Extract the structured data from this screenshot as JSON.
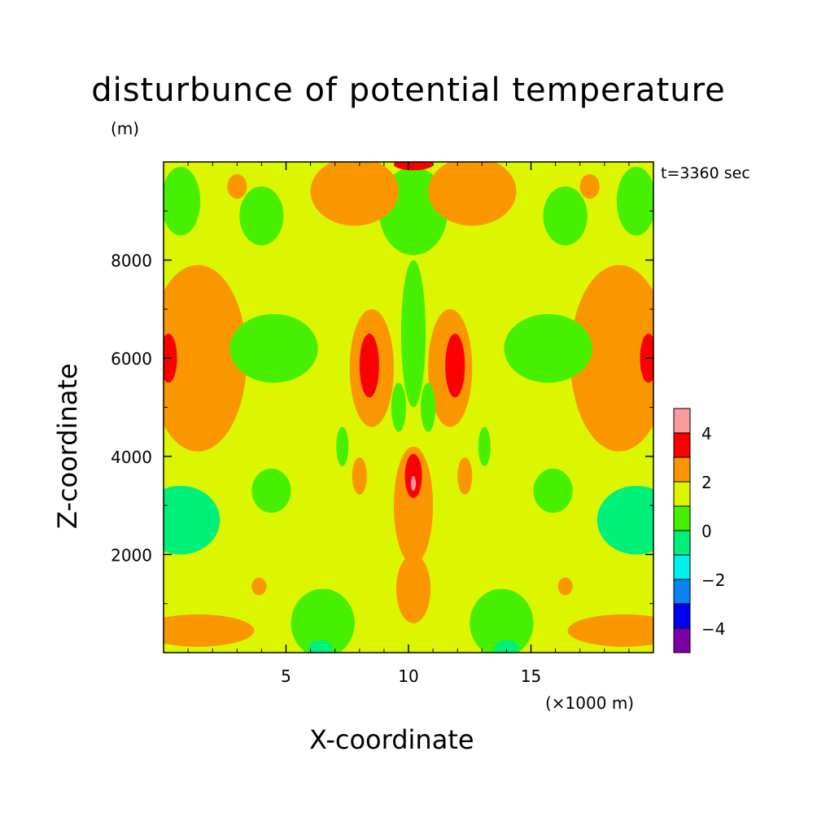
{
  "title": "disturbunce of potential temperature",
  "units_label": "(m)",
  "time_label": "t=3360 sec",
  "chart_data": {
    "type": "heatmap",
    "title": "disturbunce of potential temperature",
    "xlabel": "X-coordinate",
    "ylabel": "Z-coordinate",
    "x_unit_label": "(×1000 m)",
    "xlim": [
      0,
      20
    ],
    "ylim": [
      0,
      10000
    ],
    "x_ticks": [
      5,
      10,
      15
    ],
    "x_tick_labels": [
      "5",
      "10",
      "15"
    ],
    "y_ticks": [
      2000,
      4000,
      6000,
      8000
    ],
    "y_tick_labels": [
      "2000",
      "4000",
      "6000",
      "8000"
    ],
    "colorbar": {
      "levels": [
        -5,
        -4,
        -3,
        -2,
        -1,
        0,
        1,
        2,
        3,
        4,
        5
      ],
      "tick_values": [
        -4,
        -2,
        0,
        2,
        4
      ],
      "tick_labels": [
        "−4",
        "−2",
        "0",
        "2",
        "4"
      ],
      "colors": [
        "#7a00a8",
        "#0000f0",
        "#0a82f0",
        "#00f0f0",
        "#00f07a",
        "#46f000",
        "#dcf500",
        "#fa9600",
        "#fa0000",
        "#fa9c9c"
      ]
    },
    "background_level": "1 to 2",
    "regions": [
      {
        "level": "-1 to 0",
        "shape": "ellipse",
        "cx": 0.7,
        "cy": 2700,
        "rx": 1.6,
        "ry": 700
      },
      {
        "level": "-1 to 0",
        "shape": "ellipse",
        "cx": 19.3,
        "cy": 2700,
        "rx": 1.6,
        "ry": 700
      },
      {
        "level": "2 to 3",
        "shape": "ellipse",
        "cx": 1.4,
        "cy": 6000,
        "rx": 2.0,
        "ry": 1900
      },
      {
        "level": "2 to 3",
        "shape": "ellipse",
        "cx": 18.6,
        "cy": 6000,
        "rx": 2.0,
        "ry": 1900
      },
      {
        "level": "3 to 4",
        "shape": "ellipse",
        "cx": 0.2,
        "cy": 6000,
        "rx": 0.35,
        "ry": 500
      },
      {
        "level": "3 to 4",
        "shape": "ellipse",
        "cx": 19.8,
        "cy": 6000,
        "rx": 0.35,
        "ry": 500
      },
      {
        "level": "2 to 3",
        "shape": "ellipse",
        "cx": 8.5,
        "cy": 5800,
        "rx": 0.9,
        "ry": 1200
      },
      {
        "level": "2 to 3",
        "shape": "ellipse",
        "cx": 11.7,
        "cy": 5800,
        "rx": 0.9,
        "ry": 1200
      },
      {
        "level": "3 to 4",
        "shape": "ellipse",
        "cx": 8.4,
        "cy": 5850,
        "rx": 0.4,
        "ry": 650
      },
      {
        "level": "3 to 4",
        "shape": "ellipse",
        "cx": 11.9,
        "cy": 5850,
        "rx": 0.4,
        "ry": 650
      },
      {
        "level": "2 to 3",
        "shape": "ellipse",
        "cx": 10.2,
        "cy": 3000,
        "rx": 0.8,
        "ry": 1200
      },
      {
        "level": "3 to 4",
        "shape": "ellipse",
        "cx": 10.2,
        "cy": 3600,
        "rx": 0.35,
        "ry": 450
      },
      {
        "level": "4 to 5",
        "shape": "ellipse",
        "cx": 10.2,
        "cy": 3450,
        "rx": 0.1,
        "ry": 150
      },
      {
        "level": "2 to 3",
        "shape": "ellipse",
        "cx": 10.2,
        "cy": 1300,
        "rx": 0.7,
        "ry": 700
      },
      {
        "level": "0 to 1",
        "shape": "ellipse",
        "cx": 10.2,
        "cy": 9000,
        "rx": 1.4,
        "ry": 900
      },
      {
        "level": "0 to 1",
        "shape": "ellipse",
        "cx": 10.2,
        "cy": 6500,
        "rx": 0.5,
        "ry": 1500
      },
      {
        "level": "0 to 1",
        "shape": "ellipse",
        "cx": 4.5,
        "cy": 6200,
        "rx": 1.8,
        "ry": 700
      },
      {
        "level": "0 to 1",
        "shape": "ellipse",
        "cx": 15.7,
        "cy": 6200,
        "rx": 1.8,
        "ry": 700
      },
      {
        "level": "0 to 1",
        "shape": "ellipse",
        "cx": 4.0,
        "cy": 8900,
        "rx": 0.9,
        "ry": 600
      },
      {
        "level": "0 to 1",
        "shape": "ellipse",
        "cx": 16.4,
        "cy": 8900,
        "rx": 0.9,
        "ry": 600
      },
      {
        "level": "0 to 1",
        "shape": "ellipse",
        "cx": 0.7,
        "cy": 9200,
        "rx": 0.8,
        "ry": 700
      },
      {
        "level": "0 to 1",
        "shape": "ellipse",
        "cx": 19.3,
        "cy": 9200,
        "rx": 0.8,
        "ry": 700
      },
      {
        "level": "0 to 1",
        "shape": "ellipse",
        "cx": 4.4,
        "cy": 3300,
        "rx": 0.8,
        "ry": 450
      },
      {
        "level": "0 to 1",
        "shape": "ellipse",
        "cx": 15.9,
        "cy": 3300,
        "rx": 0.8,
        "ry": 450
      },
      {
        "level": "0 to 1",
        "shape": "ellipse",
        "cx": 6.5,
        "cy": 600,
        "rx": 1.3,
        "ry": 700
      },
      {
        "level": "0 to 1",
        "shape": "ellipse",
        "cx": 13.8,
        "cy": 600,
        "rx": 1.3,
        "ry": 700
      },
      {
        "level": "-1 to 0",
        "shape": "ellipse",
        "cx": 6.4,
        "cy": 80,
        "rx": 0.5,
        "ry": 180
      },
      {
        "level": "-1 to 0",
        "shape": "ellipse",
        "cx": 14.0,
        "cy": 80,
        "rx": 0.5,
        "ry": 180
      },
      {
        "level": "2 to 3",
        "shape": "ellipse",
        "cx": 1.4,
        "cy": 450,
        "rx": 2.3,
        "ry": 330
      },
      {
        "level": "2 to 3",
        "shape": "ellipse",
        "cx": 18.8,
        "cy": 450,
        "rx": 2.3,
        "ry": 330
      },
      {
        "level": "2 to 3",
        "shape": "ellipse",
        "cx": 7.8,
        "cy": 9400,
        "rx": 1.8,
        "ry": 700
      },
      {
        "level": "2 to 3",
        "shape": "ellipse",
        "cx": 12.6,
        "cy": 9400,
        "rx": 1.8,
        "ry": 700
      },
      {
        "level": "2 to 3",
        "shape": "ellipse",
        "cx": 3.0,
        "cy": 9500,
        "rx": 0.4,
        "ry": 250
      },
      {
        "level": "2 to 3",
        "shape": "ellipse",
        "cx": 17.4,
        "cy": 9500,
        "rx": 0.4,
        "ry": 250
      },
      {
        "level": "3 to 4",
        "shape": "ellipse",
        "cx": 10.2,
        "cy": 9950,
        "rx": 0.8,
        "ry": 120
      },
      {
        "level": "2 to 3",
        "shape": "ellipse",
        "cx": 8.0,
        "cy": 3600,
        "rx": 0.3,
        "ry": 380
      },
      {
        "level": "2 to 3",
        "shape": "ellipse",
        "cx": 12.3,
        "cy": 3600,
        "rx": 0.3,
        "ry": 380
      },
      {
        "level": "2 to 3",
        "shape": "ellipse",
        "cx": 3.9,
        "cy": 1350,
        "rx": 0.3,
        "ry": 180
      },
      {
        "level": "2 to 3",
        "shape": "ellipse",
        "cx": 16.4,
        "cy": 1350,
        "rx": 0.3,
        "ry": 180
      },
      {
        "level": "0 to 1",
        "shape": "ellipse",
        "cx": 7.3,
        "cy": 4200,
        "rx": 0.25,
        "ry": 400
      },
      {
        "level": "0 to 1",
        "shape": "ellipse",
        "cx": 13.1,
        "cy": 4200,
        "rx": 0.25,
        "ry": 400
      },
      {
        "level": "0 to 1",
        "shape": "ellipse",
        "cx": 9.6,
        "cy": 5000,
        "rx": 0.3,
        "ry": 500
      },
      {
        "level": "0 to 1",
        "shape": "ellipse",
        "cx": 10.8,
        "cy": 5000,
        "rx": 0.3,
        "ry": 500
      }
    ]
  }
}
